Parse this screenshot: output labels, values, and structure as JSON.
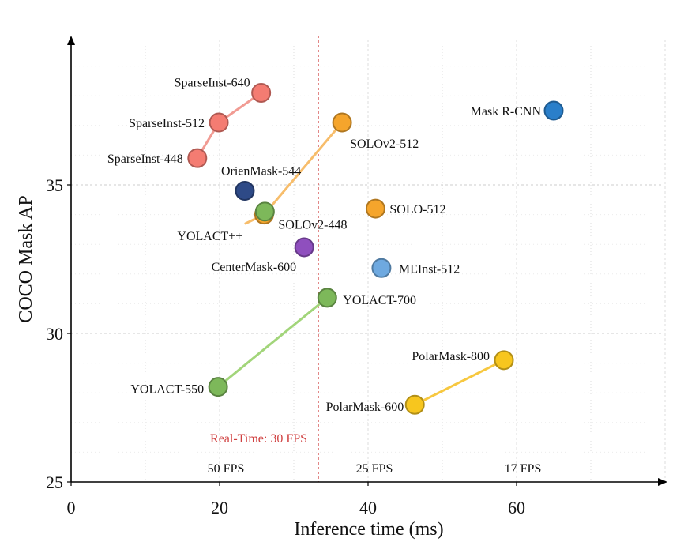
{
  "chart_data": {
    "type": "scatter",
    "xlabel": "Inference time (ms)",
    "ylabel": "COCO Mask AP",
    "xlim": [
      0,
      80
    ],
    "ylim": [
      25,
      40
    ],
    "x_ticks": [
      "0",
      "20",
      "40",
      "60"
    ],
    "y_ticks": [
      "25",
      "30",
      "35"
    ],
    "grid": true,
    "reference_line": {
      "x": 33.3,
      "label": "Real-Time: 30 FPS",
      "color": "#d04040"
    },
    "fps_labels": [
      {
        "x": 20,
        "label": "50 FPS"
      },
      {
        "x": 40,
        "label": "25 FPS"
      },
      {
        "x": 60,
        "label": "17 FPS"
      }
    ],
    "series": [
      {
        "color": "#f47c72",
        "line_color": "#f19b93",
        "points": [
          {
            "x": 17.0,
            "y": 35.9,
            "label": "SparseInst-448"
          },
          {
            "x": 19.9,
            "y": 37.1,
            "label": "SparseInst-512"
          },
          {
            "x": 25.6,
            "y": 38.1,
            "label": "SparseInst-640"
          }
        ]
      },
      {
        "color": "#f5a52c",
        "line_color": "#f7bd6b",
        "points": [
          {
            "x": 23.5,
            "y": 33.7,
            "label": ""
          },
          {
            "x": 26.0,
            "y": 34.0,
            "label": "SOLOv2-448"
          },
          {
            "x": 36.5,
            "y": 37.1,
            "label": "SOLOv2-512"
          }
        ]
      },
      {
        "color": "#7db85a",
        "line_color": "#a2d57a",
        "points": [
          {
            "x": 19.8,
            "y": 28.2,
            "label": "YOLACT-550"
          },
          {
            "x": 34.5,
            "y": 31.2,
            "label": "YOLACT-700"
          }
        ]
      },
      {
        "color": "#f7c61e",
        "line_color": "#f7c840",
        "points": [
          {
            "x": 46.3,
            "y": 27.6,
            "label": "PolarMask-600"
          },
          {
            "x": 58.3,
            "y": 29.1,
            "label": "PolarMask-800"
          }
        ]
      },
      {
        "color": "#7db85a",
        "line_color": "",
        "points": [
          {
            "x": 26.1,
            "y": 34.1,
            "label": "YOLACT++"
          }
        ]
      },
      {
        "color": "#2e4a87",
        "line_color": "",
        "points": [
          {
            "x": 23.4,
            "y": 34.8,
            "label": "OrienMask-544"
          }
        ]
      },
      {
        "color": "#f5a52c",
        "line_color": "",
        "points": [
          {
            "x": 41.0,
            "y": 34.2,
            "label": "SOLO-512"
          }
        ]
      },
      {
        "color": "#8f4fbe",
        "line_color": "",
        "points": [
          {
            "x": 31.4,
            "y": 32.9,
            "label": "CenterMask-600"
          }
        ]
      },
      {
        "color": "#6ea9e0",
        "line_color": "",
        "points": [
          {
            "x": 41.8,
            "y": 32.2,
            "label": "MEInst-512"
          }
        ]
      },
      {
        "color": "#2a7fca",
        "line_color": "",
        "points": [
          {
            "x": 65.0,
            "y": 37.5,
            "label": "Mask R-CNN"
          }
        ]
      }
    ]
  }
}
